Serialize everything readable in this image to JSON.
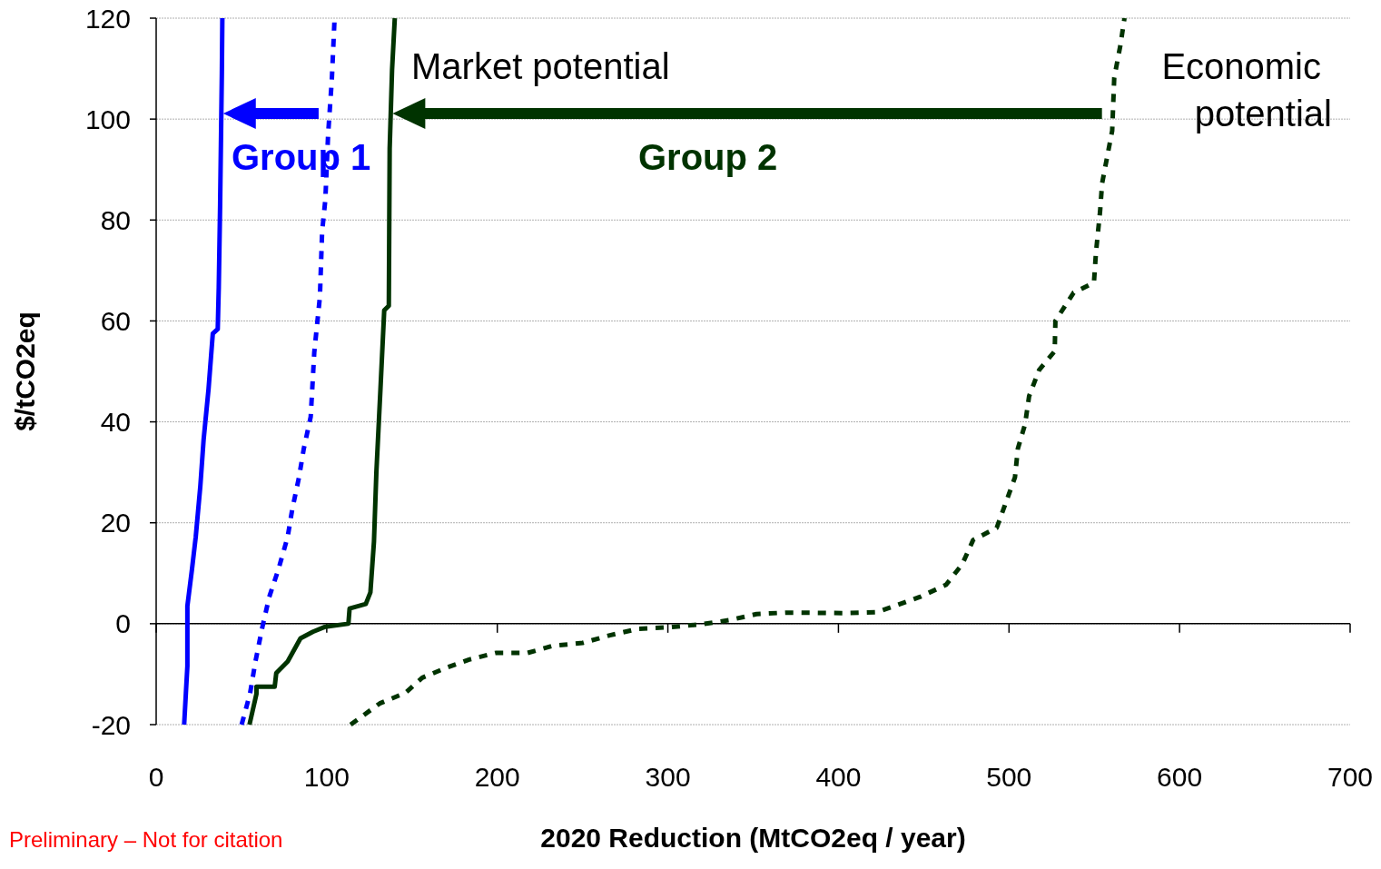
{
  "chart_data": {
    "type": "line",
    "xlabel": "2020 Reduction (MtCO2eq / year)",
    "ylabel": "$/tCO2eq",
    "xlim": [
      0,
      700
    ],
    "xticks": [
      0,
      100,
      200,
      300,
      400,
      500,
      600,
      700
    ],
    "ylim": [
      -20,
      120
    ],
    "yticks": [
      -20,
      0,
      20,
      40,
      60,
      80,
      100,
      120
    ],
    "grid": "y",
    "marker": "none",
    "series": [
      {
        "color": "#0000ff",
        "line_style": "solid",
        "x": [
          16.4,
          18.3,
          18.3,
          21,
          23.2,
          25.9,
          27.8,
          30.7,
          33.2,
          36.1,
          36.7,
          37.5,
          38.5,
          38.8
        ],
        "values": [
          -20,
          -8.4,
          3.5,
          10.8,
          17.2,
          27.3,
          36.4,
          46.5,
          57.5,
          58.4,
          66.7,
          83.2,
          108.8,
          120
        ]
      },
      {
        "color": "#0000ff",
        "line_style": "dashed",
        "x": [
          50.1,
          55,
          58.2,
          62.3,
          66.3,
          71.7,
          77.1,
          79.8,
          83.8,
          86.5,
          90.6,
          92.7,
          96,
          97.3,
          99.2,
          100.8,
          103,
          104.6
        ],
        "values": [
          -20,
          -13.9,
          -7.5,
          -0.6,
          5.3,
          10.8,
          17.2,
          22.7,
          29.1,
          34.6,
          41,
          53.8,
          64.8,
          77.7,
          84.1,
          96.9,
          107.9,
          120
        ]
      },
      {
        "color": "#003300",
        "line_style": "solid",
        "x": [
          54.7,
          58.8,
          58.8,
          69.5,
          70.4,
          77.1,
          84.6,
          91.9,
          99.2,
          112.7,
          113.4,
          122.9,
          125.6,
          127.7,
          129.1,
          131.5,
          133.7,
          136.4,
          136.9,
          138.3,
          139.9
        ],
        "values": [
          -20,
          -13.9,
          -12.5,
          -12.5,
          -9.8,
          -7.5,
          -2.9,
          -1.6,
          -0.6,
          0,
          3,
          3.9,
          6.2,
          16.3,
          30,
          46.5,
          62.1,
          63,
          94.1,
          109.7,
          120
        ]
      },
      {
        "color": "#003300",
        "line_style": "dashed",
        "x": [
          114,
          131.1,
          146.2,
          156,
          169.6,
          183.5,
          199,
          217.6,
          232.3,
          250,
          266,
          282.8,
          301.5,
          319.8,
          336,
          352,
          369,
          403.7,
          422.6,
          434.6,
          447.7,
          463.1,
          472.6,
          479,
          492.8,
          497.5,
          503.5,
          505.2,
          509.4,
          511.8,
          517.7,
          526.8,
          527.2,
          537.9,
          549.8,
          551,
          553.4,
          554.6,
          560.5,
          561.7,
          565.3,
          567.7
        ],
        "values": [
          -20,
          -15.8,
          -13.7,
          -10.7,
          -8.8,
          -7.1,
          -5.8,
          -5.8,
          -4.4,
          -3.8,
          -2.3,
          -1,
          -0.7,
          -0.1,
          0.7,
          1.9,
          2.2,
          2.1,
          2.3,
          3.7,
          5.3,
          7.7,
          11.8,
          16.6,
          19,
          23.4,
          29,
          34.7,
          39.5,
          45.1,
          50.3,
          54,
          60,
          65.6,
          67.6,
          73.6,
          81.7,
          87.3,
          97.7,
          108.2,
          114.6,
          120
        ]
      }
    ],
    "annotations": [
      "Group 1",
      "Group 2",
      "Market potential",
      "Economic potential",
      "Preliminary – Not for citation"
    ]
  }
}
